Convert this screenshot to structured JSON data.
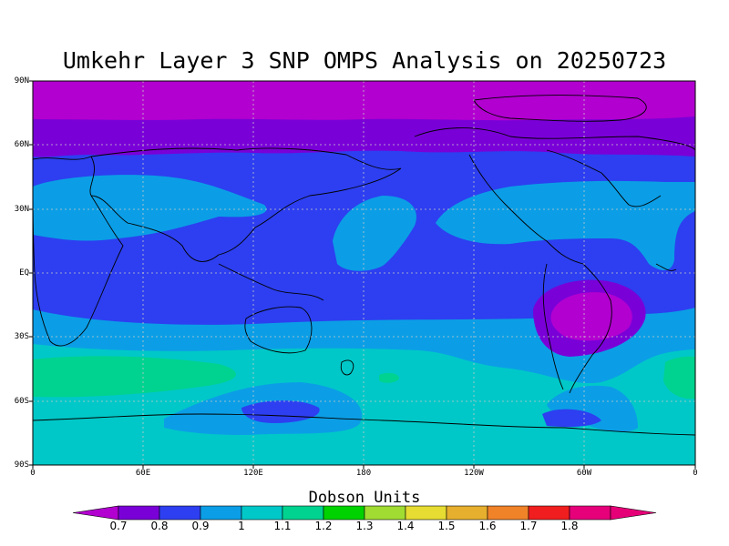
{
  "title": "Umkehr Layer 3 SNP OMPS Analysis on 20250723",
  "units_label": "Dobson Units",
  "y_axis_ticks": [
    "90N",
    "60N",
    "30N",
    "EQ",
    "30S",
    "60S",
    "90S"
  ],
  "x_axis_ticks": [
    "0",
    "60E",
    "120E",
    "180",
    "120W",
    "60W",
    "0"
  ],
  "colorbar": {
    "tick_labels": [
      "0.7",
      "0.8",
      "0.9",
      "1",
      "1.1",
      "1.2",
      "1.3",
      "1.4",
      "1.5",
      "1.6",
      "1.7",
      "1.8"
    ],
    "colors": [
      "#7a00d8",
      "#2d3ff0",
      "#0b9ee6",
      "#00c8c8",
      "#00d390",
      "#00d200",
      "#a0dc32",
      "#e6dc32",
      "#e6af2d",
      "#f08228",
      "#f01e1e",
      "#e6007a"
    ],
    "under_color": "#b200d0",
    "over_color": "#e60078"
  },
  "chart_data": {
    "type": "heatmap",
    "title": "Umkehr Layer 3 SNP OMPS Analysis on 20250723",
    "colorbar_label": "Dobson Units",
    "lon_ticks": [
      "0",
      "60E",
      "120E",
      "180",
      "120W",
      "60W",
      "0"
    ],
    "lat_ticks": [
      "90N",
      "60N",
      "30N",
      "EQ",
      "30S",
      "60S",
      "90S"
    ],
    "value_range": [
      0.7,
      1.8
    ],
    "grid": true
  }
}
